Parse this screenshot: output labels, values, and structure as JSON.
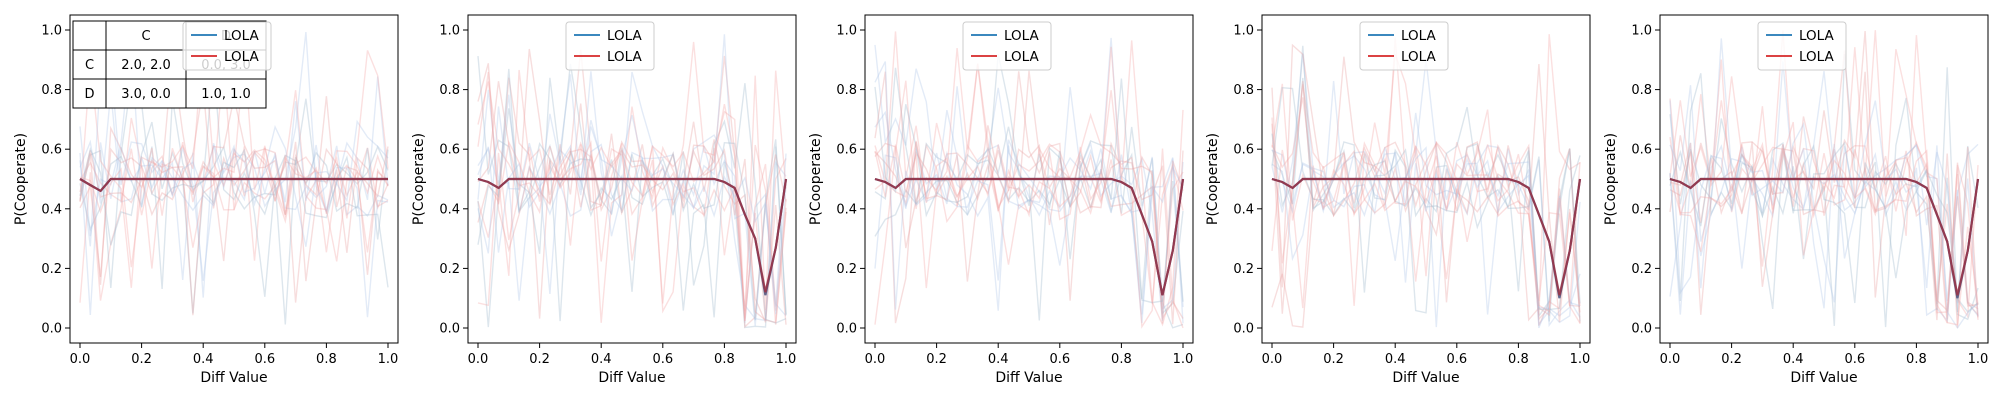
{
  "chart_data": [
    {
      "type": "line",
      "xlabel": "Diff Value",
      "ylabel": "P(Cooperate)",
      "xlim": [
        0,
        1
      ],
      "ylim": [
        0,
        1
      ],
      "xticks": [
        "0.0",
        "0.2",
        "0.4",
        "0.6",
        "0.8",
        "1.0"
      ],
      "yticks": [
        "0.0",
        "0.2",
        "0.4",
        "0.6",
        "0.8",
        "1.0"
      ],
      "legend": "top-right",
      "series": [
        {
          "name": "LOLA",
          "color": "#1f77b4",
          "x": [
            0,
            0.033,
            0.067,
            0.1,
            0.2,
            0.4,
            0.6,
            0.8,
            0.867,
            0.9,
            0.933,
            0.967,
            1.0
          ],
          "y": [
            0.5,
            0.48,
            0.46,
            0.5,
            0.5,
            0.5,
            0.5,
            0.5,
            0.5,
            0.5,
            0.5,
            0.5,
            0.5
          ]
        },
        {
          "name": "LOLA",
          "color": "#d62728",
          "x": [
            0,
            0.033,
            0.067,
            0.1,
            0.2,
            0.4,
            0.6,
            0.8,
            0.867,
            0.9,
            0.933,
            0.967,
            1.0
          ],
          "y": [
            0.5,
            0.48,
            0.46,
            0.5,
            0.5,
            0.5,
            0.5,
            0.5,
            0.5,
            0.5,
            0.5,
            0.5,
            0.5
          ]
        }
      ],
      "payoff_table": {
        "header": [
          "",
          "C",
          "D"
        ],
        "rows": [
          [
            "C",
            "2.0, 2.0",
            "0.0, 3.0"
          ],
          [
            "D",
            "3.0, 0.0",
            "1.0, 1.0"
          ]
        ]
      }
    },
    {
      "type": "line",
      "xlabel": "Diff Value",
      "ylabel": "P(Cooperate)",
      "xlim": [
        0,
        1
      ],
      "ylim": [
        0,
        1
      ],
      "xticks": [
        "0.0",
        "0.2",
        "0.4",
        "0.6",
        "0.8",
        "1.0"
      ],
      "yticks": [
        "0.0",
        "0.2",
        "0.4",
        "0.6",
        "0.8",
        "1.0"
      ],
      "legend": "top-center",
      "series": [
        {
          "name": "LOLA",
          "color": "#1f77b4",
          "x": [
            0,
            0.033,
            0.067,
            0.1,
            0.2,
            0.4,
            0.6,
            0.767,
            0.8,
            0.833,
            0.867,
            0.9,
            0.933,
            0.967,
            1.0
          ],
          "y": [
            0.5,
            0.49,
            0.47,
            0.5,
            0.5,
            0.5,
            0.5,
            0.5,
            0.49,
            0.47,
            0.38,
            0.3,
            0.11,
            0.27,
            0.5
          ]
        },
        {
          "name": "LOLA",
          "color": "#d62728",
          "x": [
            0,
            0.033,
            0.067,
            0.1,
            0.2,
            0.4,
            0.6,
            0.767,
            0.8,
            0.833,
            0.867,
            0.9,
            0.933,
            0.967,
            1.0
          ],
          "y": [
            0.5,
            0.49,
            0.47,
            0.5,
            0.5,
            0.5,
            0.5,
            0.5,
            0.49,
            0.47,
            0.38,
            0.3,
            0.12,
            0.27,
            0.5
          ]
        }
      ]
    },
    {
      "type": "line",
      "xlabel": "Diff Value",
      "ylabel": "P(Cooperate)",
      "xlim": [
        0,
        1
      ],
      "ylim": [
        0,
        1
      ],
      "xticks": [
        "0.0",
        "0.2",
        "0.4",
        "0.6",
        "0.8",
        "1.0"
      ],
      "yticks": [
        "0.0",
        "0.2",
        "0.4",
        "0.6",
        "0.8",
        "1.0"
      ],
      "legend": "top-center",
      "series": [
        {
          "name": "LOLA",
          "color": "#1f77b4",
          "x": [
            0,
            0.033,
            0.067,
            0.1,
            0.2,
            0.4,
            0.6,
            0.767,
            0.8,
            0.833,
            0.867,
            0.9,
            0.933,
            0.967,
            1.0
          ],
          "y": [
            0.5,
            0.49,
            0.47,
            0.5,
            0.5,
            0.5,
            0.5,
            0.5,
            0.49,
            0.47,
            0.38,
            0.29,
            0.11,
            0.26,
            0.5
          ]
        },
        {
          "name": "LOLA",
          "color": "#d62728",
          "x": [
            0,
            0.033,
            0.067,
            0.1,
            0.2,
            0.4,
            0.6,
            0.767,
            0.8,
            0.833,
            0.867,
            0.9,
            0.933,
            0.967,
            1.0
          ],
          "y": [
            0.5,
            0.49,
            0.47,
            0.5,
            0.5,
            0.5,
            0.5,
            0.5,
            0.49,
            0.47,
            0.38,
            0.29,
            0.11,
            0.26,
            0.5
          ]
        }
      ]
    },
    {
      "type": "line",
      "xlabel": "Diff Value",
      "ylabel": "P(Cooperate)",
      "xlim": [
        0,
        1
      ],
      "ylim": [
        0,
        1
      ],
      "xticks": [
        "0.0",
        "0.2",
        "0.4",
        "0.6",
        "0.8",
        "1.0"
      ],
      "yticks": [
        "0.0",
        "0.2",
        "0.4",
        "0.6",
        "0.8",
        "1.0"
      ],
      "legend": "top-center",
      "series": [
        {
          "name": "LOLA",
          "color": "#1f77b4",
          "x": [
            0,
            0.033,
            0.067,
            0.1,
            0.2,
            0.4,
            0.6,
            0.767,
            0.8,
            0.833,
            0.867,
            0.9,
            0.933,
            0.967,
            1.0
          ],
          "y": [
            0.5,
            0.49,
            0.47,
            0.5,
            0.5,
            0.5,
            0.5,
            0.5,
            0.49,
            0.47,
            0.38,
            0.29,
            0.1,
            0.26,
            0.5
          ]
        },
        {
          "name": "LOLA",
          "color": "#d62728",
          "x": [
            0,
            0.033,
            0.067,
            0.1,
            0.2,
            0.4,
            0.6,
            0.767,
            0.8,
            0.833,
            0.867,
            0.9,
            0.933,
            0.967,
            1.0
          ],
          "y": [
            0.5,
            0.49,
            0.47,
            0.5,
            0.5,
            0.5,
            0.5,
            0.5,
            0.49,
            0.47,
            0.38,
            0.29,
            0.11,
            0.26,
            0.5
          ]
        }
      ]
    },
    {
      "type": "line",
      "xlabel": "Diff Value",
      "ylabel": "P(Cooperate)",
      "xlim": [
        0,
        1
      ],
      "ylim": [
        0,
        1
      ],
      "xticks": [
        "0.0",
        "0.2",
        "0.4",
        "0.6",
        "0.8",
        "1.0"
      ],
      "yticks": [
        "0.0",
        "0.2",
        "0.4",
        "0.6",
        "0.8",
        "1.0"
      ],
      "legend": "top-center",
      "series": [
        {
          "name": "LOLA",
          "color": "#1f77b4",
          "x": [
            0,
            0.033,
            0.067,
            0.1,
            0.2,
            0.4,
            0.6,
            0.767,
            0.8,
            0.833,
            0.867,
            0.9,
            0.933,
            0.967,
            1.0
          ],
          "y": [
            0.5,
            0.49,
            0.47,
            0.5,
            0.5,
            0.5,
            0.5,
            0.5,
            0.49,
            0.47,
            0.38,
            0.29,
            0.1,
            0.26,
            0.5
          ]
        },
        {
          "name": "LOLA",
          "color": "#d62728",
          "x": [
            0,
            0.033,
            0.067,
            0.1,
            0.2,
            0.4,
            0.6,
            0.767,
            0.8,
            0.833,
            0.867,
            0.9,
            0.933,
            0.967,
            1.0
          ],
          "y": [
            0.5,
            0.49,
            0.47,
            0.5,
            0.5,
            0.5,
            0.5,
            0.5,
            0.49,
            0.47,
            0.38,
            0.29,
            0.11,
            0.26,
            0.5
          ]
        }
      ]
    }
  ]
}
